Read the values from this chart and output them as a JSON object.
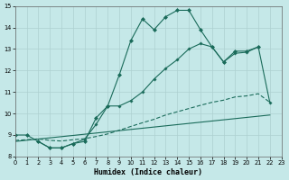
{
  "xlabel": "Humidex (Indice chaleur)",
  "bg_color": "#c5e8e8",
  "grid_color": "#aed0d0",
  "line_color": "#1a6b5a",
  "xlim": [
    0,
    23
  ],
  "ylim": [
    8,
    15
  ],
  "xticks": [
    0,
    1,
    2,
    3,
    4,
    5,
    6,
    7,
    8,
    9,
    10,
    11,
    12,
    13,
    14,
    15,
    16,
    17,
    18,
    19,
    20,
    21,
    22,
    23
  ],
  "yticks": [
    8,
    9,
    10,
    11,
    12,
    13,
    14,
    15
  ],
  "line1_x": [
    0,
    1,
    2,
    3,
    4,
    5,
    6,
    7,
    8,
    9,
    10,
    11,
    12,
    13,
    14,
    15,
    16,
    17,
    18,
    19,
    20,
    21
  ],
  "line1_y": [
    9.0,
    9.0,
    8.7,
    8.4,
    8.4,
    8.6,
    8.7,
    9.8,
    10.35,
    11.8,
    13.4,
    14.4,
    13.9,
    14.5,
    14.8,
    14.8,
    13.9,
    13.1,
    12.4,
    12.9,
    12.9,
    13.1
  ],
  "line2_x": [
    2,
    3,
    4,
    5,
    6,
    7,
    8,
    9,
    10,
    11,
    12,
    13,
    14,
    15,
    16,
    17,
    18,
    19,
    20,
    21,
    22
  ],
  "line2_y": [
    8.7,
    8.4,
    8.4,
    8.6,
    8.8,
    9.5,
    10.35,
    10.35,
    10.6,
    11.0,
    11.6,
    12.1,
    12.5,
    13.0,
    13.25,
    13.1,
    12.4,
    12.8,
    12.85,
    13.1,
    10.5
  ],
  "line3_x": [
    0,
    1,
    2,
    3,
    4,
    5,
    6,
    7,
    8,
    9,
    10,
    11,
    12,
    13,
    14,
    15,
    16,
    17,
    18,
    19,
    20,
    21,
    22
  ],
  "line3_y": [
    8.75,
    8.78,
    8.82,
    8.75,
    8.72,
    8.78,
    8.83,
    8.93,
    9.05,
    9.22,
    9.4,
    9.57,
    9.73,
    9.93,
    10.08,
    10.23,
    10.38,
    10.52,
    10.62,
    10.77,
    10.82,
    10.92,
    10.52
  ],
  "line4_x": [
    0,
    22
  ],
  "line4_y": [
    8.7,
    9.93
  ]
}
